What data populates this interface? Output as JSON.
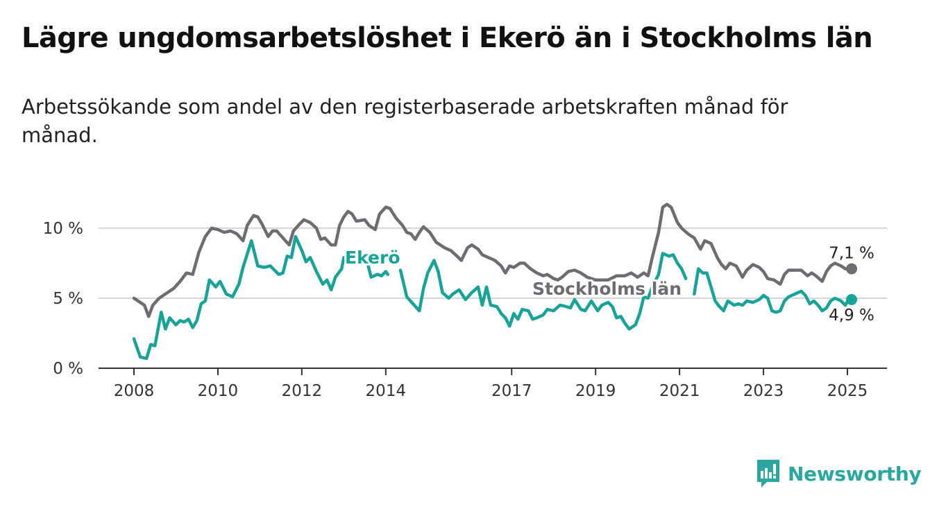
{
  "title": "Lägre ungdomsarbetslöshet i Ekerö än i Stockholms län",
  "subtitle": "Arbetssökande som andel av den registerbaserade arbetskraften månad för månad.",
  "brand": "Newsworthy",
  "colors": {
    "ekero": "#17a398",
    "stockholm": "#6c6c72",
    "grid": "#d6d6d6",
    "axis": "#333333",
    "brand": "#2aa8a0"
  },
  "chart_data": {
    "type": "line",
    "xlabel": "",
    "ylabel": "",
    "xlim": [
      2008,
      2025.4
    ],
    "ylim": [
      0,
      12
    ],
    "y_ticks": [
      {
        "value": 0,
        "label": "0 %"
      },
      {
        "value": 5,
        "label": "5 %"
      },
      {
        "value": 10,
        "label": "10 %"
      }
    ],
    "x_ticks": [
      {
        "value": 2008,
        "label": "2008"
      },
      {
        "value": 2010,
        "label": "2010"
      },
      {
        "value": 2012,
        "label": "2012"
      },
      {
        "value": 2014,
        "label": "2014"
      },
      {
        "value": 2017,
        "label": "2017"
      },
      {
        "value": 2019,
        "label": "2019"
      },
      {
        "value": 2021,
        "label": "2021"
      },
      {
        "value": 2023,
        "label": "2023"
      },
      {
        "value": 2025,
        "label": "2025"
      }
    ],
    "grid": true,
    "series": [
      {
        "name": "Stockholms län",
        "end_label": "7,1 %",
        "points": [
          [
            2008.0,
            5.0
          ],
          [
            2008.25,
            4.5
          ],
          [
            2008.35,
            3.7
          ],
          [
            2008.45,
            4.5
          ],
          [
            2008.6,
            5.0
          ],
          [
            2008.8,
            5.4
          ],
          [
            2008.95,
            5.7
          ],
          [
            2009.1,
            6.2
          ],
          [
            2009.25,
            6.8
          ],
          [
            2009.4,
            6.7
          ],
          [
            2009.55,
            8.3
          ],
          [
            2009.7,
            9.4
          ],
          [
            2009.85,
            10.0
          ],
          [
            2010.0,
            9.9
          ],
          [
            2010.15,
            9.7
          ],
          [
            2010.3,
            9.8
          ],
          [
            2010.45,
            9.6
          ],
          [
            2010.6,
            9.1
          ],
          [
            2010.7,
            10.2
          ],
          [
            2010.85,
            10.9
          ],
          [
            2010.95,
            10.8
          ],
          [
            2011.05,
            10.3
          ],
          [
            2011.2,
            9.4
          ],
          [
            2011.3,
            9.8
          ],
          [
            2011.4,
            9.8
          ],
          [
            2011.55,
            9.3
          ],
          [
            2011.7,
            8.8
          ],
          [
            2011.8,
            9.8
          ],
          [
            2011.95,
            10.3
          ],
          [
            2012.05,
            10.6
          ],
          [
            2012.2,
            10.4
          ],
          [
            2012.35,
            10.0
          ],
          [
            2012.45,
            9.2
          ],
          [
            2012.55,
            9.3
          ],
          [
            2012.7,
            8.8
          ],
          [
            2012.8,
            8.8
          ],
          [
            2012.9,
            10.2
          ],
          [
            2013.0,
            10.8
          ],
          [
            2013.1,
            11.2
          ],
          [
            2013.2,
            11.0
          ],
          [
            2013.3,
            10.5
          ],
          [
            2013.5,
            10.6
          ],
          [
            2013.6,
            10.2
          ],
          [
            2013.75,
            9.9
          ],
          [
            2013.85,
            11.0
          ],
          [
            2014.0,
            11.5
          ],
          [
            2014.1,
            11.4
          ],
          [
            2014.25,
            10.7
          ],
          [
            2014.4,
            10.2
          ],
          [
            2014.5,
            9.7
          ],
          [
            2014.6,
            9.6
          ],
          [
            2014.7,
            9.2
          ],
          [
            2014.8,
            9.7
          ],
          [
            2014.9,
            10.1
          ],
          [
            2015.05,
            9.7
          ],
          [
            2015.2,
            9.0
          ],
          [
            2015.4,
            8.6
          ],
          [
            2015.55,
            8.4
          ],
          [
            2015.7,
            8.0
          ],
          [
            2015.8,
            7.7
          ],
          [
            2015.95,
            8.6
          ],
          [
            2016.05,
            8.8
          ],
          [
            2016.2,
            8.5
          ],
          [
            2016.3,
            8.1
          ],
          [
            2016.45,
            7.9
          ],
          [
            2016.6,
            7.7
          ],
          [
            2016.75,
            7.3
          ],
          [
            2016.85,
            6.8
          ],
          [
            2016.95,
            7.3
          ],
          [
            2017.05,
            7.2
          ],
          [
            2017.2,
            7.5
          ],
          [
            2017.3,
            7.5
          ],
          [
            2017.45,
            7.1
          ],
          [
            2017.6,
            6.8
          ],
          [
            2017.75,
            6.6
          ],
          [
            2017.85,
            6.7
          ],
          [
            2018.0,
            6.4
          ],
          [
            2018.1,
            6.3
          ],
          [
            2018.2,
            6.5
          ],
          [
            2018.35,
            6.9
          ],
          [
            2018.5,
            7.0
          ],
          [
            2018.65,
            6.8
          ],
          [
            2018.8,
            6.5
          ],
          [
            2019.0,
            6.3
          ],
          [
            2019.3,
            6.3
          ],
          [
            2019.5,
            6.6
          ],
          [
            2019.7,
            6.6
          ],
          [
            2019.85,
            6.8
          ],
          [
            2020.0,
            6.5
          ],
          [
            2020.15,
            6.8
          ],
          [
            2020.25,
            6.6
          ],
          [
            2020.35,
            7.9
          ],
          [
            2020.5,
            9.7
          ],
          [
            2020.6,
            11.5
          ],
          [
            2020.7,
            11.7
          ],
          [
            2020.8,
            11.5
          ],
          [
            2020.95,
            10.4
          ],
          [
            2021.05,
            10.0
          ],
          [
            2021.2,
            9.6
          ],
          [
            2021.35,
            9.3
          ],
          [
            2021.5,
            8.5
          ],
          [
            2021.6,
            9.1
          ],
          [
            2021.75,
            8.9
          ],
          [
            2021.9,
            7.9
          ],
          [
            2022.0,
            7.4
          ],
          [
            2022.1,
            7.1
          ],
          [
            2022.2,
            7.5
          ],
          [
            2022.35,
            7.3
          ],
          [
            2022.5,
            6.5
          ],
          [
            2022.6,
            7.0
          ],
          [
            2022.75,
            7.4
          ],
          [
            2022.9,
            7.2
          ],
          [
            2023.0,
            6.9
          ],
          [
            2023.1,
            6.4
          ],
          [
            2023.25,
            6.3
          ],
          [
            2023.4,
            6.0
          ],
          [
            2023.5,
            6.7
          ],
          [
            2023.6,
            7.0
          ],
          [
            2023.75,
            7.0
          ],
          [
            2023.9,
            7.0
          ],
          [
            2024.05,
            6.6
          ],
          [
            2024.15,
            6.8
          ],
          [
            2024.25,
            6.6
          ],
          [
            2024.4,
            6.2
          ],
          [
            2024.5,
            6.9
          ],
          [
            2024.6,
            7.3
          ],
          [
            2024.7,
            7.5
          ],
          [
            2024.85,
            7.3
          ],
          [
            2024.95,
            7.1
          ],
          [
            2025.1,
            7.1
          ]
        ]
      },
      {
        "name": "Ekerö",
        "end_label": "4,9 %",
        "points": [
          [
            2008.0,
            2.1
          ],
          [
            2008.15,
            0.8
          ],
          [
            2008.3,
            0.7
          ],
          [
            2008.4,
            1.7
          ],
          [
            2008.5,
            1.6
          ],
          [
            2008.65,
            4.0
          ],
          [
            2008.75,
            2.8
          ],
          [
            2008.85,
            3.6
          ],
          [
            2009.0,
            3.1
          ],
          [
            2009.1,
            3.4
          ],
          [
            2009.2,
            3.3
          ],
          [
            2009.3,
            3.5
          ],
          [
            2009.4,
            2.9
          ],
          [
            2009.5,
            3.4
          ],
          [
            2009.6,
            4.6
          ],
          [
            2009.7,
            4.8
          ],
          [
            2009.8,
            6.3
          ],
          [
            2009.95,
            5.8
          ],
          [
            2010.05,
            6.2
          ],
          [
            2010.2,
            5.3
          ],
          [
            2010.35,
            5.1
          ],
          [
            2010.5,
            6.0
          ],
          [
            2010.6,
            7.2
          ],
          [
            2010.8,
            9.1
          ],
          [
            2010.95,
            7.3
          ],
          [
            2011.1,
            7.2
          ],
          [
            2011.25,
            7.3
          ],
          [
            2011.45,
            6.7
          ],
          [
            2011.55,
            6.8
          ],
          [
            2011.65,
            8.0
          ],
          [
            2011.75,
            7.9
          ],
          [
            2011.85,
            9.4
          ],
          [
            2012.0,
            8.4
          ],
          [
            2012.1,
            7.6
          ],
          [
            2012.2,
            7.9
          ],
          [
            2012.35,
            6.9
          ],
          [
            2012.5,
            6.0
          ],
          [
            2012.6,
            6.3
          ],
          [
            2012.7,
            5.6
          ],
          [
            2012.8,
            6.5
          ],
          [
            2012.95,
            7.1
          ],
          [
            2013.0,
            7.9
          ],
          [
            2013.15,
            7.7
          ],
          [
            2013.25,
            7.8
          ],
          [
            2013.35,
            7.8
          ],
          null,
          [
            2013.55,
            7.7
          ],
          [
            2013.65,
            6.5
          ],
          [
            2013.8,
            6.7
          ],
          [
            2013.9,
            6.6
          ],
          [
            2014.0,
            6.9
          ],
          [
            2014.05,
            6.7
          ],
          null,
          [
            2014.35,
            7.0
          ],
          [
            2014.5,
            5.1
          ],
          [
            2014.65,
            4.6
          ],
          [
            2014.8,
            4.1
          ],
          [
            2014.9,
            5.7
          ],
          [
            2015.0,
            6.8
          ],
          [
            2015.15,
            7.7
          ],
          [
            2015.25,
            6.9
          ],
          [
            2015.35,
            5.4
          ],
          [
            2015.5,
            5.0
          ],
          [
            2015.6,
            5.3
          ],
          [
            2015.75,
            5.6
          ],
          [
            2015.9,
            4.9
          ],
          [
            2016.05,
            5.4
          ],
          [
            2016.2,
            5.8
          ],
          [
            2016.3,
            4.5
          ],
          [
            2016.4,
            5.8
          ],
          [
            2016.5,
            4.5
          ],
          [
            2016.65,
            4.4
          ],
          [
            2016.75,
            3.9
          ],
          [
            2016.85,
            3.6
          ],
          [
            2016.95,
            3.0
          ],
          [
            2017.05,
            3.9
          ],
          [
            2017.15,
            3.5
          ],
          [
            2017.25,
            4.2
          ],
          [
            2017.4,
            4.1
          ],
          [
            2017.5,
            3.5
          ],
          [
            2017.6,
            3.6
          ],
          [
            2017.75,
            3.8
          ],
          [
            2017.85,
            4.2
          ],
          [
            2018.0,
            4.1
          ],
          [
            2018.15,
            4.5
          ],
          [
            2018.3,
            4.4
          ],
          [
            2018.4,
            4.3
          ],
          [
            2018.5,
            4.9
          ],
          [
            2018.65,
            4.2
          ],
          [
            2018.75,
            4.1
          ],
          [
            2018.9,
            4.8
          ],
          [
            2019.05,
            4.1
          ],
          [
            2019.15,
            4.5
          ],
          [
            2019.3,
            4.7
          ],
          [
            2019.4,
            4.4
          ],
          [
            2019.5,
            3.6
          ],
          [
            2019.6,
            3.7
          ],
          [
            2019.7,
            3.2
          ],
          [
            2019.8,
            2.8
          ],
          [
            2019.95,
            3.1
          ],
          [
            2020.05,
            3.9
          ],
          [
            2020.15,
            5.1
          ],
          [
            2020.25,
            5.0
          ],
          [
            2020.35,
            5.8
          ],
          [
            2020.5,
            6.7
          ],
          [
            2020.6,
            8.2
          ],
          [
            2020.75,
            8.0
          ],
          [
            2020.85,
            8.1
          ],
          [
            2020.95,
            7.5
          ],
          [
            2021.05,
            7.1
          ],
          [
            2021.15,
            6.4
          ],
          null,
          [
            2021.35,
            5.3
          ],
          [
            2021.45,
            7.1
          ],
          [
            2021.55,
            6.8
          ],
          [
            2021.65,
            6.8
          ],
          [
            2021.75,
            5.8
          ],
          [
            2021.85,
            4.8
          ],
          [
            2021.95,
            4.4
          ],
          [
            2022.05,
            4.1
          ],
          [
            2022.15,
            4.8
          ],
          [
            2022.3,
            4.5
          ],
          [
            2022.4,
            4.6
          ],
          [
            2022.5,
            4.5
          ],
          [
            2022.6,
            4.8
          ],
          [
            2022.75,
            4.7
          ],
          [
            2022.9,
            4.9
          ],
          [
            2023.0,
            5.2
          ],
          [
            2023.1,
            5.0
          ],
          [
            2023.2,
            4.1
          ],
          [
            2023.3,
            4.0
          ],
          [
            2023.4,
            4.1
          ],
          [
            2023.5,
            4.8
          ],
          [
            2023.6,
            5.1
          ],
          [
            2023.75,
            5.3
          ],
          [
            2023.9,
            5.5
          ],
          [
            2024.0,
            5.2
          ],
          [
            2024.1,
            4.6
          ],
          [
            2024.2,
            4.8
          ],
          [
            2024.3,
            4.5
          ],
          [
            2024.4,
            4.1
          ],
          [
            2024.5,
            4.3
          ],
          [
            2024.6,
            4.8
          ],
          [
            2024.7,
            5.0
          ],
          [
            2024.85,
            4.8
          ],
          [
            2024.95,
            4.5
          ],
          [
            2025.05,
            5.0
          ],
          [
            2025.1,
            4.9
          ]
        ]
      }
    ]
  }
}
